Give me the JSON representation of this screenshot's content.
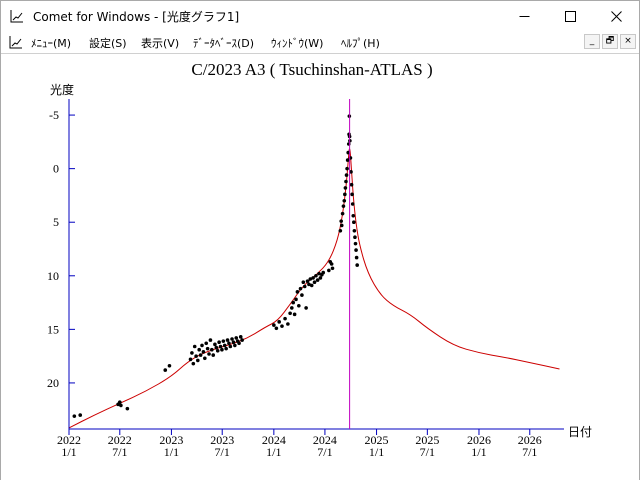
{
  "window": {
    "title": "Comet for Windows - [光度グラフ1]",
    "controls": {
      "minimize_icon": "minimize-icon",
      "maximize_icon": "maximize-icon",
      "close_icon": "close-icon"
    }
  },
  "menubar": {
    "items": [
      "ﾒﾆｭｰ(M)",
      "設定(S)",
      "表示(V)",
      "ﾃﾞｰﾀﾍﾞｰｽ(D)",
      "ｳｨﾝﾄﾞｳ(W)",
      "ﾍﾙﾌﾟ(H)"
    ],
    "mdi_buttons": [
      "_",
      "🗗",
      "×"
    ]
  },
  "colors": {
    "axis": "#0000c0",
    "perihelion_line": "#c000c0",
    "curve": "#cc0000",
    "points": "#000000"
  },
  "chart_data": {
    "type": "scatter",
    "title": "C/2023 A3 ( Tsuchinshan-ATLAS )",
    "ylabel": "光度",
    "xlabel": "日付",
    "y_reversed": true,
    "ylim": [
      -6.5,
      24.3
    ],
    "y_ticks": [
      -5,
      0,
      5,
      10,
      15,
      20
    ],
    "x_domain": [
      "2022-01-01",
      "2026-10-31"
    ],
    "x_ticks": [
      {
        "date": "2022-01-01",
        "year": "2022",
        "md": "1/1"
      },
      {
        "date": "2022-07-01",
        "year": "2022",
        "md": "7/1"
      },
      {
        "date": "2023-01-01",
        "year": "2023",
        "md": "1/1"
      },
      {
        "date": "2023-07-01",
        "year": "2023",
        "md": "7/1"
      },
      {
        "date": "2024-01-01",
        "year": "2024",
        "md": "1/1"
      },
      {
        "date": "2024-07-01",
        "year": "2024",
        "md": "7/1"
      },
      {
        "date": "2025-01-01",
        "year": "2025",
        "md": "1/1"
      },
      {
        "date": "2025-07-01",
        "year": "2025",
        "md": "7/1"
      },
      {
        "date": "2026-01-01",
        "year": "2026",
        "md": "1/1"
      },
      {
        "date": "2026-07-01",
        "year": "2026",
        "md": "7/1"
      }
    ],
    "perihelion_date": "2024-09-27",
    "fitted_curve": [
      {
        "date": "2022-01-01",
        "mag": 24.2
      },
      {
        "date": "2022-04-01",
        "mag": 23.0
      },
      {
        "date": "2022-07-01",
        "mag": 21.9
      },
      {
        "date": "2022-10-01",
        "mag": 20.8
      },
      {
        "date": "2023-01-01",
        "mag": 19.4
      },
      {
        "date": "2023-03-01",
        "mag": 18.0
      },
      {
        "date": "2023-05-01",
        "mag": 17.1
      },
      {
        "date": "2023-08-01",
        "mag": 16.4
      },
      {
        "date": "2023-10-01",
        "mag": 15.8
      },
      {
        "date": "2023-12-01",
        "mag": 14.8
      },
      {
        "date": "2024-01-15",
        "mag": 14.2
      },
      {
        "date": "2024-03-01",
        "mag": 12.6
      },
      {
        "date": "2024-04-15",
        "mag": 10.9
      },
      {
        "date": "2024-06-01",
        "mag": 9.9
      },
      {
        "date": "2024-07-15",
        "mag": 8.7
      },
      {
        "date": "2024-08-15",
        "mag": 6.7
      },
      {
        "date": "2024-09-01",
        "mag": 4.5
      },
      {
        "date": "2024-09-15",
        "mag": 1.6
      },
      {
        "date": "2024-09-22",
        "mag": -0.7
      },
      {
        "date": "2024-09-27",
        "mag": -2.3
      },
      {
        "date": "2024-10-03",
        "mag": -0.2
      },
      {
        "date": "2024-10-10",
        "mag": 2.7
      },
      {
        "date": "2024-10-20",
        "mag": 5.2
      },
      {
        "date": "2024-11-01",
        "mag": 7.1
      },
      {
        "date": "2024-12-01",
        "mag": 9.8
      },
      {
        "date": "2025-01-15",
        "mag": 11.8
      },
      {
        "date": "2025-03-01",
        "mag": 12.8
      },
      {
        "date": "2025-05-01",
        "mag": 13.6
      },
      {
        "date": "2025-07-01",
        "mag": 14.9
      },
      {
        "date": "2025-10-01",
        "mag": 16.5
      },
      {
        "date": "2026-01-01",
        "mag": 17.2
      },
      {
        "date": "2026-04-01",
        "mag": 17.6
      },
      {
        "date": "2026-07-01",
        "mag": 18.1
      },
      {
        "date": "2026-10-15",
        "mag": 18.7
      }
    ],
    "observations": [
      {
        "date": "2022-01-20",
        "mag": 23.1
      },
      {
        "date": "2022-02-10",
        "mag": 23.0
      },
      {
        "date": "2022-06-25",
        "mag": 22.0
      },
      {
        "date": "2022-07-01",
        "mag": 21.8
      },
      {
        "date": "2022-07-05",
        "mag": 22.1
      },
      {
        "date": "2022-07-28",
        "mag": 22.4
      },
      {
        "date": "2022-12-10",
        "mag": 18.8
      },
      {
        "date": "2022-12-25",
        "mag": 18.4
      },
      {
        "date": "2023-03-10",
        "mag": 17.8
      },
      {
        "date": "2023-03-15",
        "mag": 17.2
      },
      {
        "date": "2023-03-20",
        "mag": 18.2
      },
      {
        "date": "2023-03-25",
        "mag": 16.6
      },
      {
        "date": "2023-03-30",
        "mag": 17.5
      },
      {
        "date": "2023-04-05",
        "mag": 17.9
      },
      {
        "date": "2023-04-10",
        "mag": 16.9
      },
      {
        "date": "2023-04-15",
        "mag": 17.4
      },
      {
        "date": "2023-04-20",
        "mag": 16.5
      },
      {
        "date": "2023-04-25",
        "mag": 17.1
      },
      {
        "date": "2023-04-30",
        "mag": 17.7
      },
      {
        "date": "2023-05-05",
        "mag": 16.3
      },
      {
        "date": "2023-05-10",
        "mag": 16.8
      },
      {
        "date": "2023-05-15",
        "mag": 17.3
      },
      {
        "date": "2023-05-20",
        "mag": 16.0
      },
      {
        "date": "2023-05-25",
        "mag": 16.9
      },
      {
        "date": "2023-05-30",
        "mag": 17.4
      },
      {
        "date": "2023-06-05",
        "mag": 16.4
      },
      {
        "date": "2023-06-10",
        "mag": 16.7
      },
      {
        "date": "2023-06-15",
        "mag": 17.0
      },
      {
        "date": "2023-06-20",
        "mag": 16.2
      },
      {
        "date": "2023-06-25",
        "mag": 16.6
      },
      {
        "date": "2023-06-30",
        "mag": 16.9
      },
      {
        "date": "2023-07-05",
        "mag": 16.1
      },
      {
        "date": "2023-07-10",
        "mag": 16.5
      },
      {
        "date": "2023-07-15",
        "mag": 16.8
      },
      {
        "date": "2023-07-20",
        "mag": 16.0
      },
      {
        "date": "2023-07-25",
        "mag": 16.3
      },
      {
        "date": "2023-07-30",
        "mag": 16.6
      },
      {
        "date": "2023-08-05",
        "mag": 15.9
      },
      {
        "date": "2023-08-10",
        "mag": 16.2
      },
      {
        "date": "2023-08-15",
        "mag": 16.5
      },
      {
        "date": "2023-08-20",
        "mag": 15.8
      },
      {
        "date": "2023-08-25",
        "mag": 16.1
      },
      {
        "date": "2023-08-30",
        "mag": 16.3
      },
      {
        "date": "2023-09-05",
        "mag": 15.7
      },
      {
        "date": "2023-09-10",
        "mag": 16.0
      },
      {
        "date": "2024-01-01",
        "mag": 14.6
      },
      {
        "date": "2024-01-10",
        "mag": 14.9
      },
      {
        "date": "2024-01-20",
        "mag": 14.3
      },
      {
        "date": "2024-01-30",
        "mag": 14.7
      },
      {
        "date": "2024-02-10",
        "mag": 14.0
      },
      {
        "date": "2024-02-20",
        "mag": 14.5
      },
      {
        "date": "2024-02-28",
        "mag": 13.5
      },
      {
        "date": "2024-03-05",
        "mag": 13.0
      },
      {
        "date": "2024-03-10",
        "mag": 12.5
      },
      {
        "date": "2024-03-15",
        "mag": 13.6
      },
      {
        "date": "2024-03-20",
        "mag": 12.2
      },
      {
        "date": "2024-03-25",
        "mag": 11.5
      },
      {
        "date": "2024-03-30",
        "mag": 12.8
      },
      {
        "date": "2024-04-05",
        "mag": 11.2
      },
      {
        "date": "2024-04-10",
        "mag": 11.8
      },
      {
        "date": "2024-04-15",
        "mag": 10.6
      },
      {
        "date": "2024-04-20",
        "mag": 11.0
      },
      {
        "date": "2024-04-25",
        "mag": 13.0
      },
      {
        "date": "2024-04-30",
        "mag": 10.5
      },
      {
        "date": "2024-05-05",
        "mag": 10.8
      },
      {
        "date": "2024-05-10",
        "mag": 10.3
      },
      {
        "date": "2024-05-15",
        "mag": 10.9
      },
      {
        "date": "2024-05-20",
        "mag": 10.2
      },
      {
        "date": "2024-05-25",
        "mag": 10.6
      },
      {
        "date": "2024-05-30",
        "mag": 10.0
      },
      {
        "date": "2024-06-05",
        "mag": 10.4
      },
      {
        "date": "2024-06-10",
        "mag": 9.8
      },
      {
        "date": "2024-06-15",
        "mag": 10.2
      },
      {
        "date": "2024-06-20",
        "mag": 9.9
      },
      {
        "date": "2024-06-25",
        "mag": 9.7
      },
      {
        "date": "2024-07-15",
        "mag": 9.5
      },
      {
        "date": "2024-07-20",
        "mag": 8.7
      },
      {
        "date": "2024-07-25",
        "mag": 8.9
      },
      {
        "date": "2024-07-28",
        "mag": 9.3
      },
      {
        "date": "2024-08-25",
        "mag": 5.8
      },
      {
        "date": "2024-08-28",
        "mag": 4.9
      },
      {
        "date": "2024-08-30",
        "mag": 5.3
      },
      {
        "date": "2024-09-02",
        "mag": 4.2
      },
      {
        "date": "2024-09-05",
        "mag": 3.5
      },
      {
        "date": "2024-09-08",
        "mag": 3.0
      },
      {
        "date": "2024-09-10",
        "mag": 2.4
      },
      {
        "date": "2024-09-12",
        "mag": 1.8
      },
      {
        "date": "2024-09-14",
        "mag": 1.2
      },
      {
        "date": "2024-09-16",
        "mag": 0.6
      },
      {
        "date": "2024-09-18",
        "mag": 0.0
      },
      {
        "date": "2024-09-20",
        "mag": -0.8
      },
      {
        "date": "2024-09-22",
        "mag": -1.5
      },
      {
        "date": "2024-09-24",
        "mag": -2.3
      },
      {
        "date": "2024-09-25",
        "mag": -3.2
      },
      {
        "date": "2024-09-26",
        "mag": -4.9
      },
      {
        "date": "2024-09-27",
        "mag": -3.0
      },
      {
        "date": "2024-09-28",
        "mag": -2.6
      },
      {
        "date": "2024-09-30",
        "mag": -1.0
      },
      {
        "date": "2024-10-02",
        "mag": 0.3
      },
      {
        "date": "2024-10-04",
        "mag": 1.5
      },
      {
        "date": "2024-10-06",
        "mag": 2.4
      },
      {
        "date": "2024-10-08",
        "mag": 3.3
      },
      {
        "date": "2024-10-10",
        "mag": 4.4
      },
      {
        "date": "2024-10-12",
        "mag": 5.0
      },
      {
        "date": "2024-10-14",
        "mag": 5.8
      },
      {
        "date": "2024-10-16",
        "mag": 6.4
      },
      {
        "date": "2024-10-18",
        "mag": 7.0
      },
      {
        "date": "2024-10-20",
        "mag": 7.6
      },
      {
        "date": "2024-10-22",
        "mag": 8.3
      },
      {
        "date": "2024-10-24",
        "mag": 9.0
      }
    ]
  }
}
